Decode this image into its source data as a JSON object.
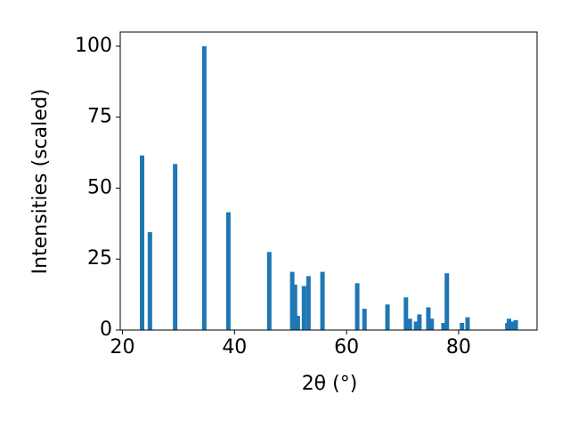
{
  "chart_data": {
    "type": "bar",
    "xlabel": "2θ (°)",
    "ylabel": "Intensities (scaled)",
    "x": [
      23.5,
      24.9,
      29.4,
      34.6,
      38.9,
      46.2,
      50.3,
      50.8,
      51.3,
      52.4,
      53.2,
      55.7,
      61.9,
      63.2,
      67.3,
      70.6,
      71.3,
      72.4,
      73.0,
      74.6,
      75.2,
      77.3,
      77.9,
      80.6,
      81.6,
      88.7,
      89.0,
      89.5,
      90.2
    ],
    "values": [
      61.5,
      34.5,
      58.5,
      100,
      41.5,
      27.5,
      20.5,
      16,
      5,
      15.5,
      19,
      20.5,
      16.5,
      7.5,
      9,
      11.5,
      4,
      3,
      5.5,
      8,
      4,
      2.5,
      20,
      2.5,
      4.5,
      2.5,
      4,
      3,
      3.5
    ],
    "color": "#1f77b4",
    "xlim": [
      19.6,
      94.0
    ],
    "xticks": [
      20,
      40,
      60,
      80
    ],
    "ylim": [
      0,
      105
    ],
    "yticks": [
      0,
      25,
      50,
      75,
      100
    ],
    "grid": false
  }
}
